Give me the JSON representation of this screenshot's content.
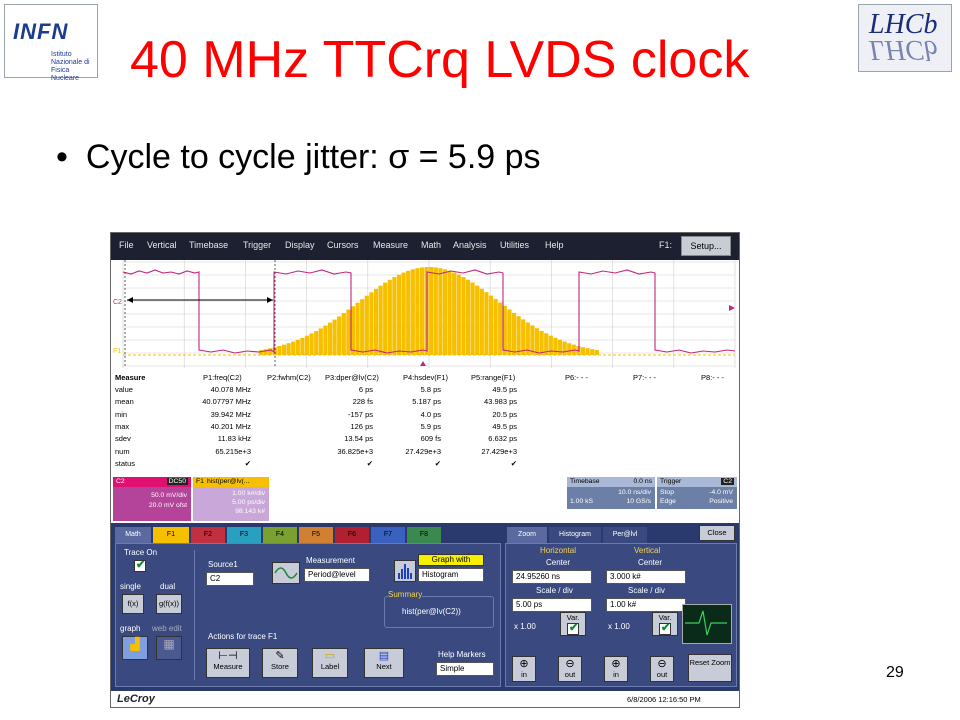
{
  "slide": {
    "title": "40 MHz TTCrq LVDS clock",
    "bullet": "Cycle to cycle jitter: σ = 5.9 ps",
    "page_number": "29",
    "logo_left_text": "INFN",
    "logo_left_sub": "Istituto Nazionale di Fisica Nucleare",
    "logo_right_text": "LHCb"
  },
  "scope": {
    "menu": [
      "File",
      "Vertical",
      "Timebase",
      "Trigger",
      "Display",
      "Cursors",
      "Measure",
      "Math",
      "Analysis",
      "Utilities",
      "Help"
    ],
    "f1_label": "F1:",
    "setup_label": "Setup...",
    "channel_labels": {
      "c2": "C2",
      "f1": "F1"
    },
    "measure_headers": [
      "Measure",
      "P1:freq(C2)",
      "P2:fwhm(C2)",
      "P3:dper@lv(C2)",
      "P4:hsdev(F1)",
      "P5:range(F1)",
      "P6:- - -",
      "P7:- - -",
      "P8:- - -"
    ],
    "measure_rows": [
      {
        "label": "value",
        "cells": [
          "40.078 MHz",
          "",
          "6 ps",
          "5.8 ps",
          "49.5 ps"
        ]
      },
      {
        "label": "mean",
        "cells": [
          "40.07797 MHz",
          "",
          "228 fs",
          "5.187 ps",
          "43.983 ps"
        ]
      },
      {
        "label": "min",
        "cells": [
          "39.942 MHz",
          "",
          "-157 ps",
          "4.0 ps",
          "20.5 ps"
        ]
      },
      {
        "label": "max",
        "cells": [
          "40.201 MHz",
          "",
          "126 ps",
          "5.9 ps",
          "49.5 ps"
        ]
      },
      {
        "label": "sdev",
        "cells": [
          "11.83 kHz",
          "",
          "13.54 ps",
          "609 fs",
          "6.632 ps"
        ]
      },
      {
        "label": "num",
        "cells": [
          "65.215e+3",
          "",
          "36.825e+3",
          "27.429e+3",
          "27.429e+3"
        ]
      },
      {
        "label": "status",
        "cells": [
          "✔",
          "",
          "✔",
          "✔",
          "✔"
        ]
      }
    ],
    "desc_c2": {
      "name": "C2",
      "tag": "DC50",
      "line1": "50.0 mV/div",
      "line2": "20.0 mV ofst"
    },
    "desc_f1": {
      "name": "F1",
      "tag": "hist(per@lv(...",
      "line1": "1.00 k#/div",
      "line2": "5.00 ps/div",
      "line3": "98.143 k#"
    },
    "desc_timebase": {
      "name": "Timebase",
      "value": "0.0 ns",
      "l1a": "10.0 ns/div",
      "l2a": "1.00 kS",
      "l2b": "10 GS/s"
    },
    "desc_trigger": {
      "name": "Trigger",
      "tag": "C2",
      "l1a": "Stop",
      "l1b": "-4.0 mV",
      "l2a": "Edge",
      "l2b": "Positive"
    },
    "tabs_left": [
      "Math",
      "F1",
      "F2",
      "F3",
      "F4",
      "F5",
      "F6",
      "F7",
      "F8"
    ],
    "tabs_right": [
      "Zoom",
      "Histogram",
      "Per@lvl"
    ],
    "close_label": "Close",
    "trace_on_label": "Trace On",
    "single_label": "single",
    "dual_label": "dual",
    "fx_label": "f(x)",
    "gfx_label": "g(f(x))",
    "graph_label": "graph",
    "web_edit_label": "web edit",
    "source1_label": "Source1",
    "source1_value": "C2",
    "measurement_label": "Measurement",
    "measurement_value": "Period@level",
    "graph_with_label": "Graph with",
    "graph_with_value": "Histogram",
    "summary_label": "Summary",
    "summary_value": "hist(per@lv(C2))",
    "actions_label": "Actions for trace F1",
    "action_buttons": [
      "Measure",
      "Store",
      "Label",
      "Next"
    ],
    "help_markers_label": "Help Markers",
    "help_markers_value": "Simple",
    "horizontal_label": "Horizontal",
    "vertical_label": "Vertical",
    "center_label": "Center",
    "h_center_value": "24.95260 ns",
    "v_center_value": "3.000 k#",
    "scale_label": "Scale / div",
    "h_scale_value": "5.00 ps",
    "v_scale_value": "1.00 k#",
    "x100_label": "x 1.00",
    "var_label": "Var.",
    "zoom_in_label": "in",
    "zoom_out_label": "out",
    "reset_zoom_label": "Reset Zoom",
    "brand": "LeCroy",
    "timestamp": "6/8/2006 12:16:50 PM"
  }
}
